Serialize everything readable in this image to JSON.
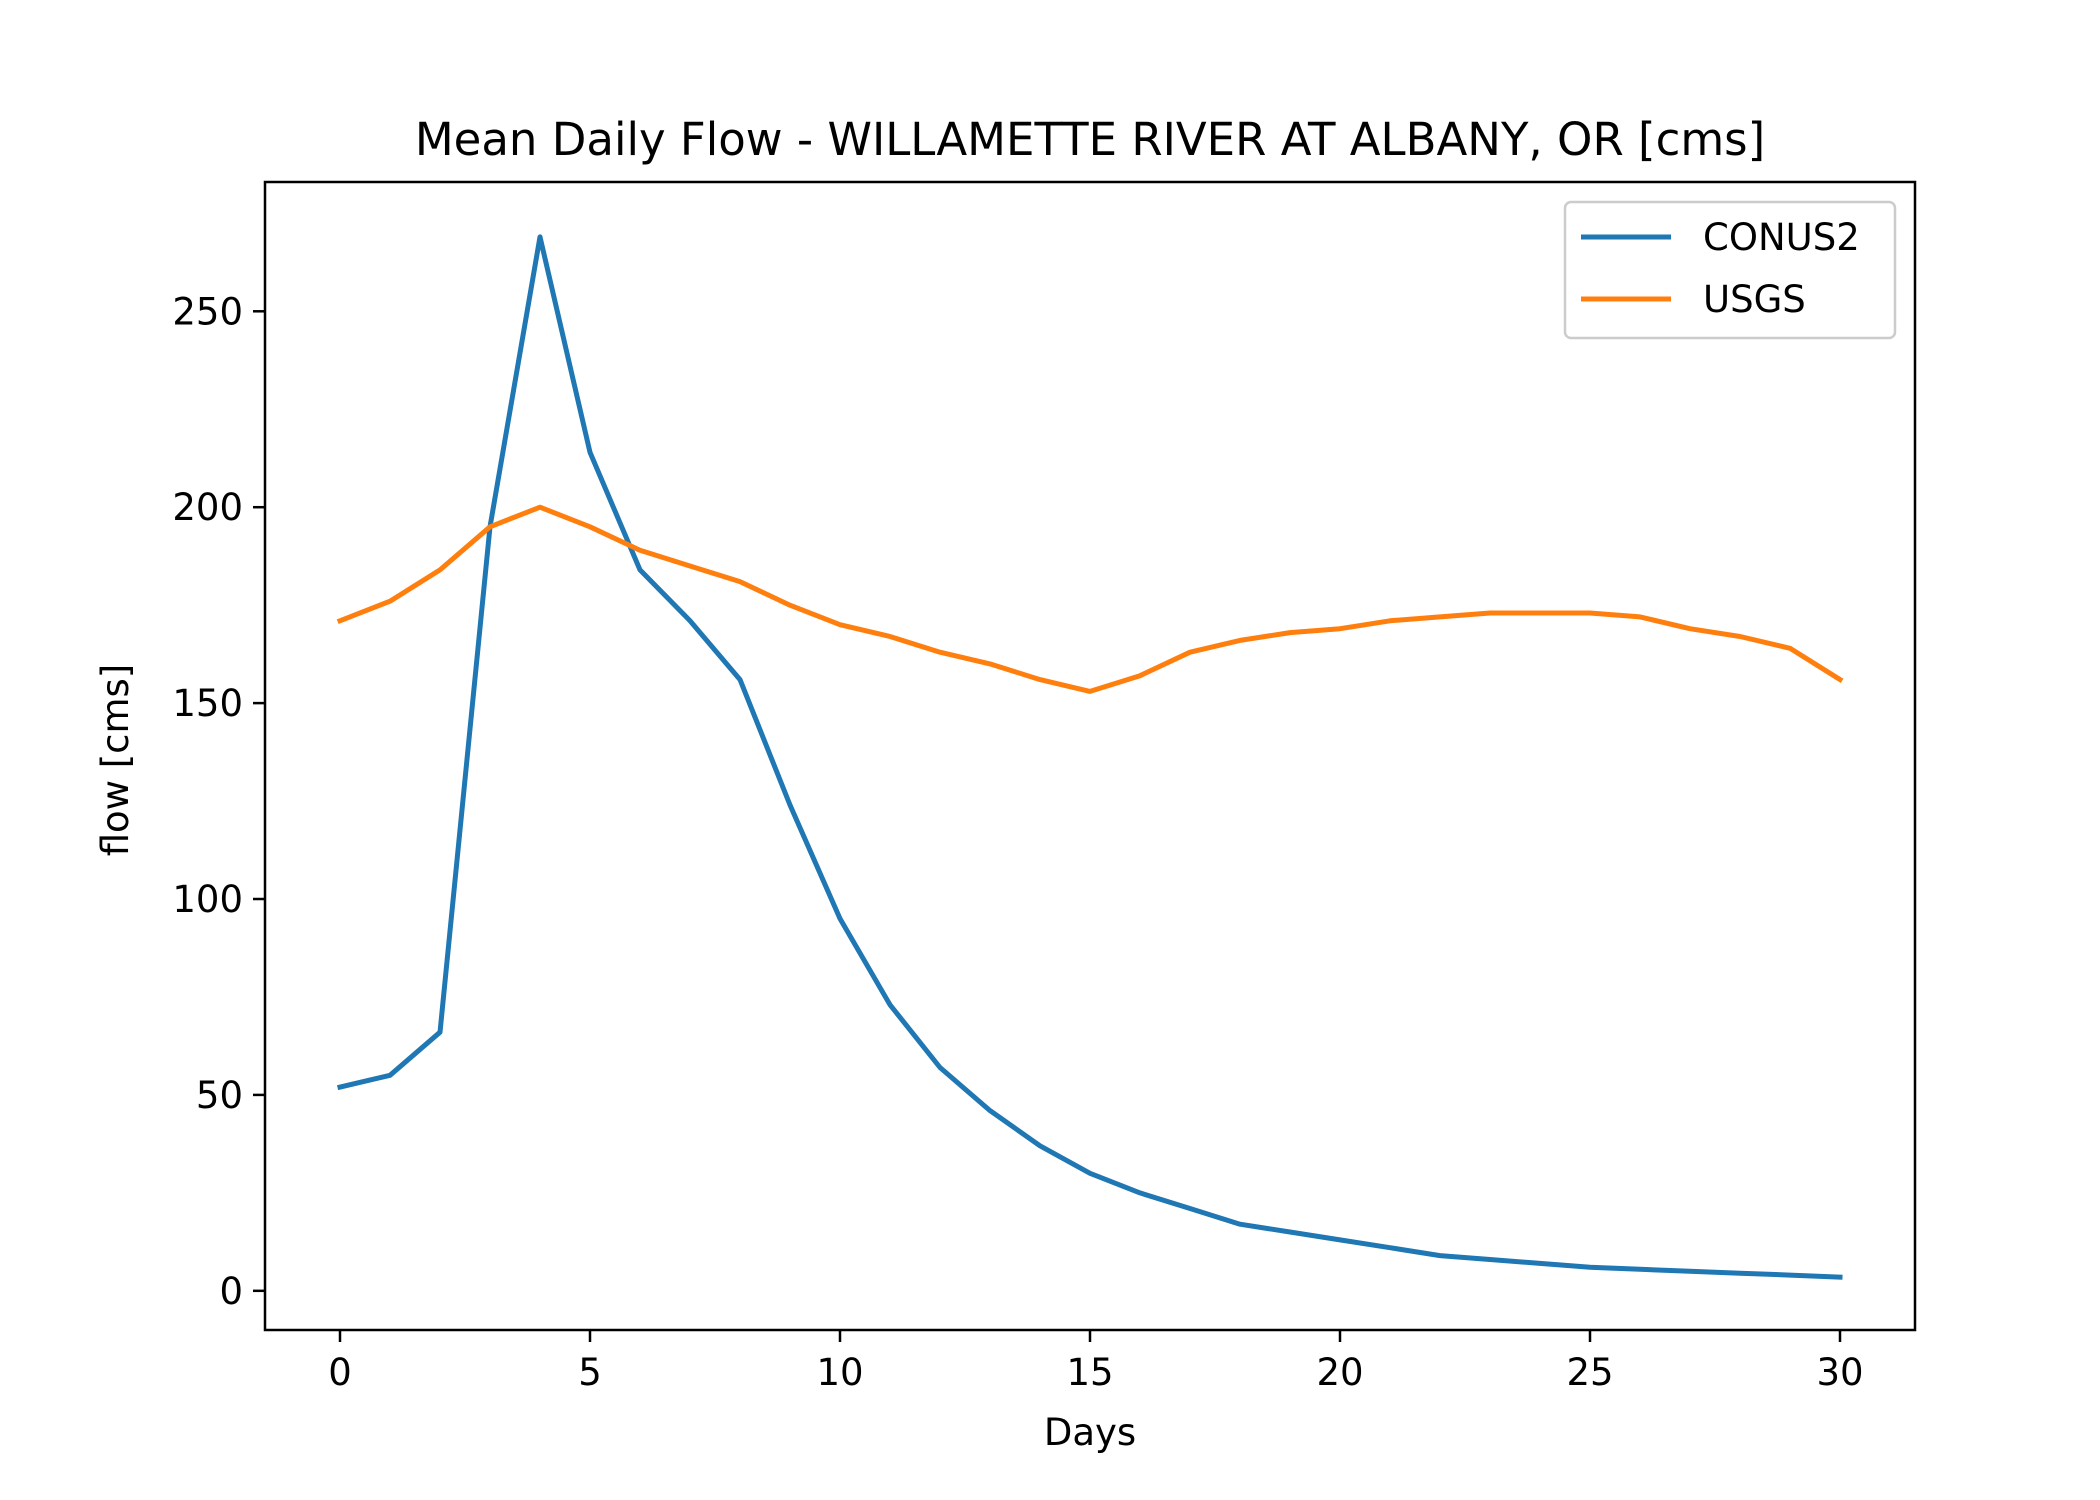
{
  "chart_data": {
    "type": "line",
    "title": "Mean Daily Flow - WILLAMETTE RIVER AT ALBANY, OR [cms]",
    "xlabel": "Days",
    "ylabel": "flow [cms]",
    "xlim": [
      -1.5,
      31.5
    ],
    "ylim": [
      -10,
      283
    ],
    "xticks": [
      0,
      5,
      10,
      15,
      20,
      25,
      30
    ],
    "yticks": [
      0,
      50,
      100,
      150,
      200,
      250
    ],
    "legend": "top-right",
    "grid": false,
    "x": [
      0,
      1,
      2,
      3,
      4,
      5,
      6,
      7,
      8,
      9,
      10,
      11,
      12,
      13,
      14,
      15,
      16,
      17,
      18,
      19,
      20,
      21,
      22,
      23,
      24,
      25,
      26,
      27,
      28,
      29,
      30
    ],
    "series": [
      {
        "name": "CONUS2",
        "color": "#1f77b4",
        "values": [
          52,
          55,
          66,
          195,
          269,
          214,
          184,
          171,
          156,
          124,
          95,
          73,
          57,
          46,
          37,
          30,
          25,
          21,
          17,
          15,
          13,
          11,
          9,
          8,
          7,
          6,
          5.5,
          5,
          4.5,
          4,
          3.5
        ]
      },
      {
        "name": "USGS",
        "color": "#ff7f0e",
        "values": [
          171,
          176,
          184,
          195,
          200,
          195,
          189,
          185,
          181,
          175,
          170,
          167,
          163,
          160,
          156,
          153,
          157,
          163,
          166,
          168,
          169,
          171,
          172,
          173,
          173,
          173,
          172,
          169,
          167,
          164,
          156
        ]
      }
    ]
  }
}
